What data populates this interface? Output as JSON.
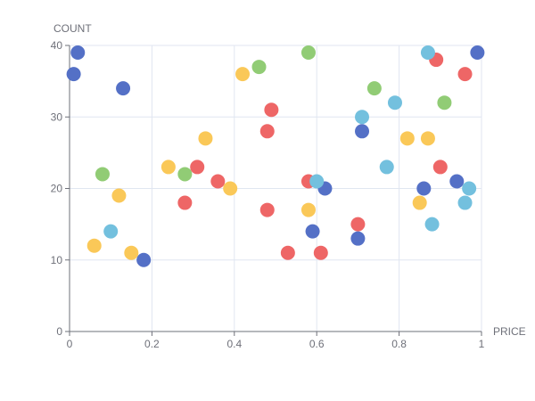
{
  "chart_data": {
    "type": "scatter",
    "xlabel": "PRICE",
    "ylabel": "COUNT",
    "xlim": [
      0,
      1
    ],
    "ylim": [
      0,
      40
    ],
    "x_ticks": [
      "0",
      "0.2",
      "0.4",
      "0.6",
      "0.8",
      "1"
    ],
    "y_ticks": [
      "0",
      "10",
      "20",
      "30",
      "40"
    ],
    "grid": true,
    "series": [
      {
        "color": "#5470c6",
        "points": [
          [
            0.01,
            36
          ],
          [
            0.02,
            39
          ],
          [
            0.13,
            34
          ],
          [
            0.18,
            10
          ],
          [
            0.59,
            14
          ],
          [
            0.62,
            20
          ],
          [
            0.7,
            13
          ],
          [
            0.71,
            28
          ],
          [
            0.86,
            20
          ],
          [
            0.94,
            21
          ],
          [
            0.99,
            39
          ]
        ]
      },
      {
        "color": "#91cc75",
        "points": [
          [
            0.08,
            22
          ],
          [
            0.28,
            22
          ],
          [
            0.46,
            37
          ],
          [
            0.58,
            39
          ],
          [
            0.74,
            34
          ],
          [
            0.91,
            32
          ]
        ]
      },
      {
        "color": "#fac858",
        "points": [
          [
            0.06,
            12
          ],
          [
            0.12,
            19
          ],
          [
            0.15,
            11
          ],
          [
            0.24,
            23
          ],
          [
            0.33,
            27
          ],
          [
            0.39,
            20
          ],
          [
            0.42,
            36
          ],
          [
            0.58,
            17
          ],
          [
            0.82,
            27
          ],
          [
            0.85,
            18
          ],
          [
            0.87,
            27
          ]
        ]
      },
      {
        "color": "#ee6666",
        "points": [
          [
            0.28,
            18
          ],
          [
            0.31,
            23
          ],
          [
            0.36,
            21
          ],
          [
            0.48,
            17
          ],
          [
            0.48,
            28
          ],
          [
            0.49,
            31
          ],
          [
            0.53,
            11
          ],
          [
            0.58,
            21
          ],
          [
            0.61,
            11
          ],
          [
            0.7,
            15
          ],
          [
            0.89,
            38
          ],
          [
            0.9,
            23
          ],
          [
            0.96,
            36
          ]
        ]
      },
      {
        "color": "#73c0de",
        "points": [
          [
            0.1,
            14
          ],
          [
            0.6,
            21
          ],
          [
            0.71,
            30
          ],
          [
            0.77,
            23
          ],
          [
            0.79,
            32
          ],
          [
            0.87,
            39
          ],
          [
            0.88,
            15
          ],
          [
            0.96,
            18
          ],
          [
            0.97,
            20
          ]
        ]
      }
    ]
  }
}
